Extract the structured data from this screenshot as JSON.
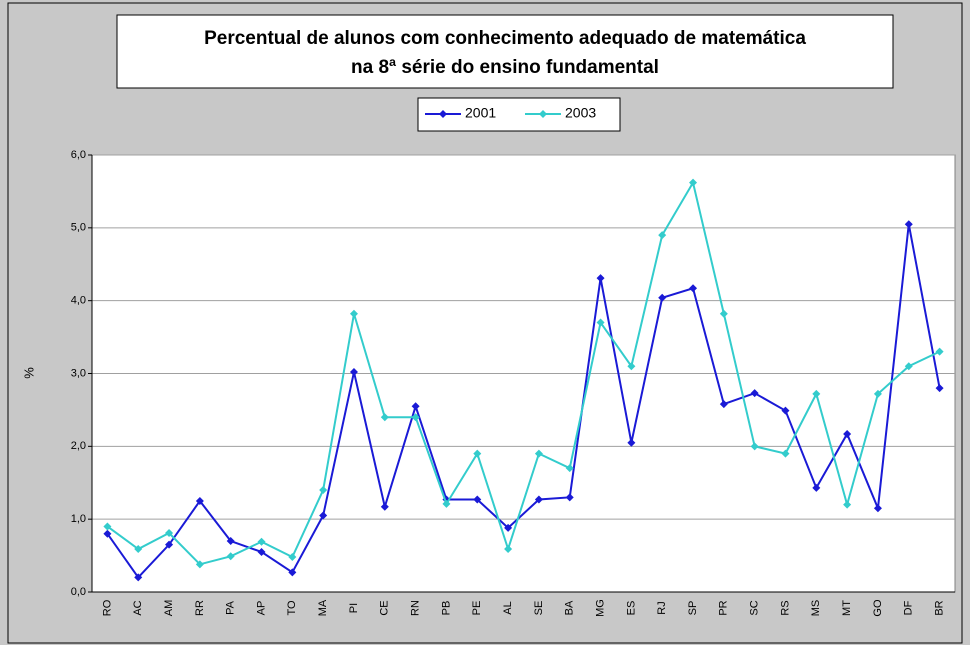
{
  "chart_data": {
    "type": "line",
    "title": [
      "Percentual de alunos com conhecimento adequado de matemática",
      "na 8ª série do ensino fundamental"
    ],
    "y_label": "%",
    "categories": [
      "RO",
      "AC",
      "AM",
      "RR",
      "PA",
      "AP",
      "TO",
      "MA",
      "PI",
      "CE",
      "RN",
      "PB",
      "PE",
      "AL",
      "SE",
      "BA",
      "MG",
      "ES",
      "RJ",
      "SP",
      "PR",
      "SC",
      "RS",
      "MS",
      "MT",
      "GO",
      "DF",
      "BR"
    ],
    "series": [
      {
        "name": "2001",
        "color": "#1a1ad6",
        "values": [
          0.8,
          0.2,
          0.65,
          1.25,
          0.7,
          0.55,
          0.27,
          1.05,
          3.02,
          1.17,
          2.55,
          1.27,
          1.27,
          0.88,
          1.27,
          1.3,
          4.31,
          2.05,
          4.04,
          4.17,
          2.58,
          2.73,
          2.49,
          1.43,
          2.17,
          1.15,
          5.05,
          2.8
        ]
      },
      {
        "name": "2003",
        "color": "#33cccc",
        "values": [
          0.9,
          0.59,
          0.81,
          0.38,
          0.49,
          0.69,
          0.48,
          1.4,
          3.82,
          2.4,
          2.4,
          1.21,
          1.9,
          0.59,
          1.9,
          1.7,
          3.7,
          3.1,
          4.9,
          5.62,
          3.82,
          2.0,
          1.9,
          2.72,
          1.2,
          2.72,
          3.1,
          3.3
        ]
      }
    ],
    "ylim": [
      0,
      6
    ],
    "yticks": [
      {
        "value": 0,
        "label": "0,0"
      },
      {
        "value": 1,
        "label": "1,0"
      },
      {
        "value": 2,
        "label": "2,0"
      },
      {
        "value": 3,
        "label": "3,0"
      },
      {
        "value": 4,
        "label": "4,0"
      },
      {
        "value": 5,
        "label": "5,0"
      },
      {
        "value": 6,
        "label": "6,0"
      }
    ],
    "grid": true
  }
}
